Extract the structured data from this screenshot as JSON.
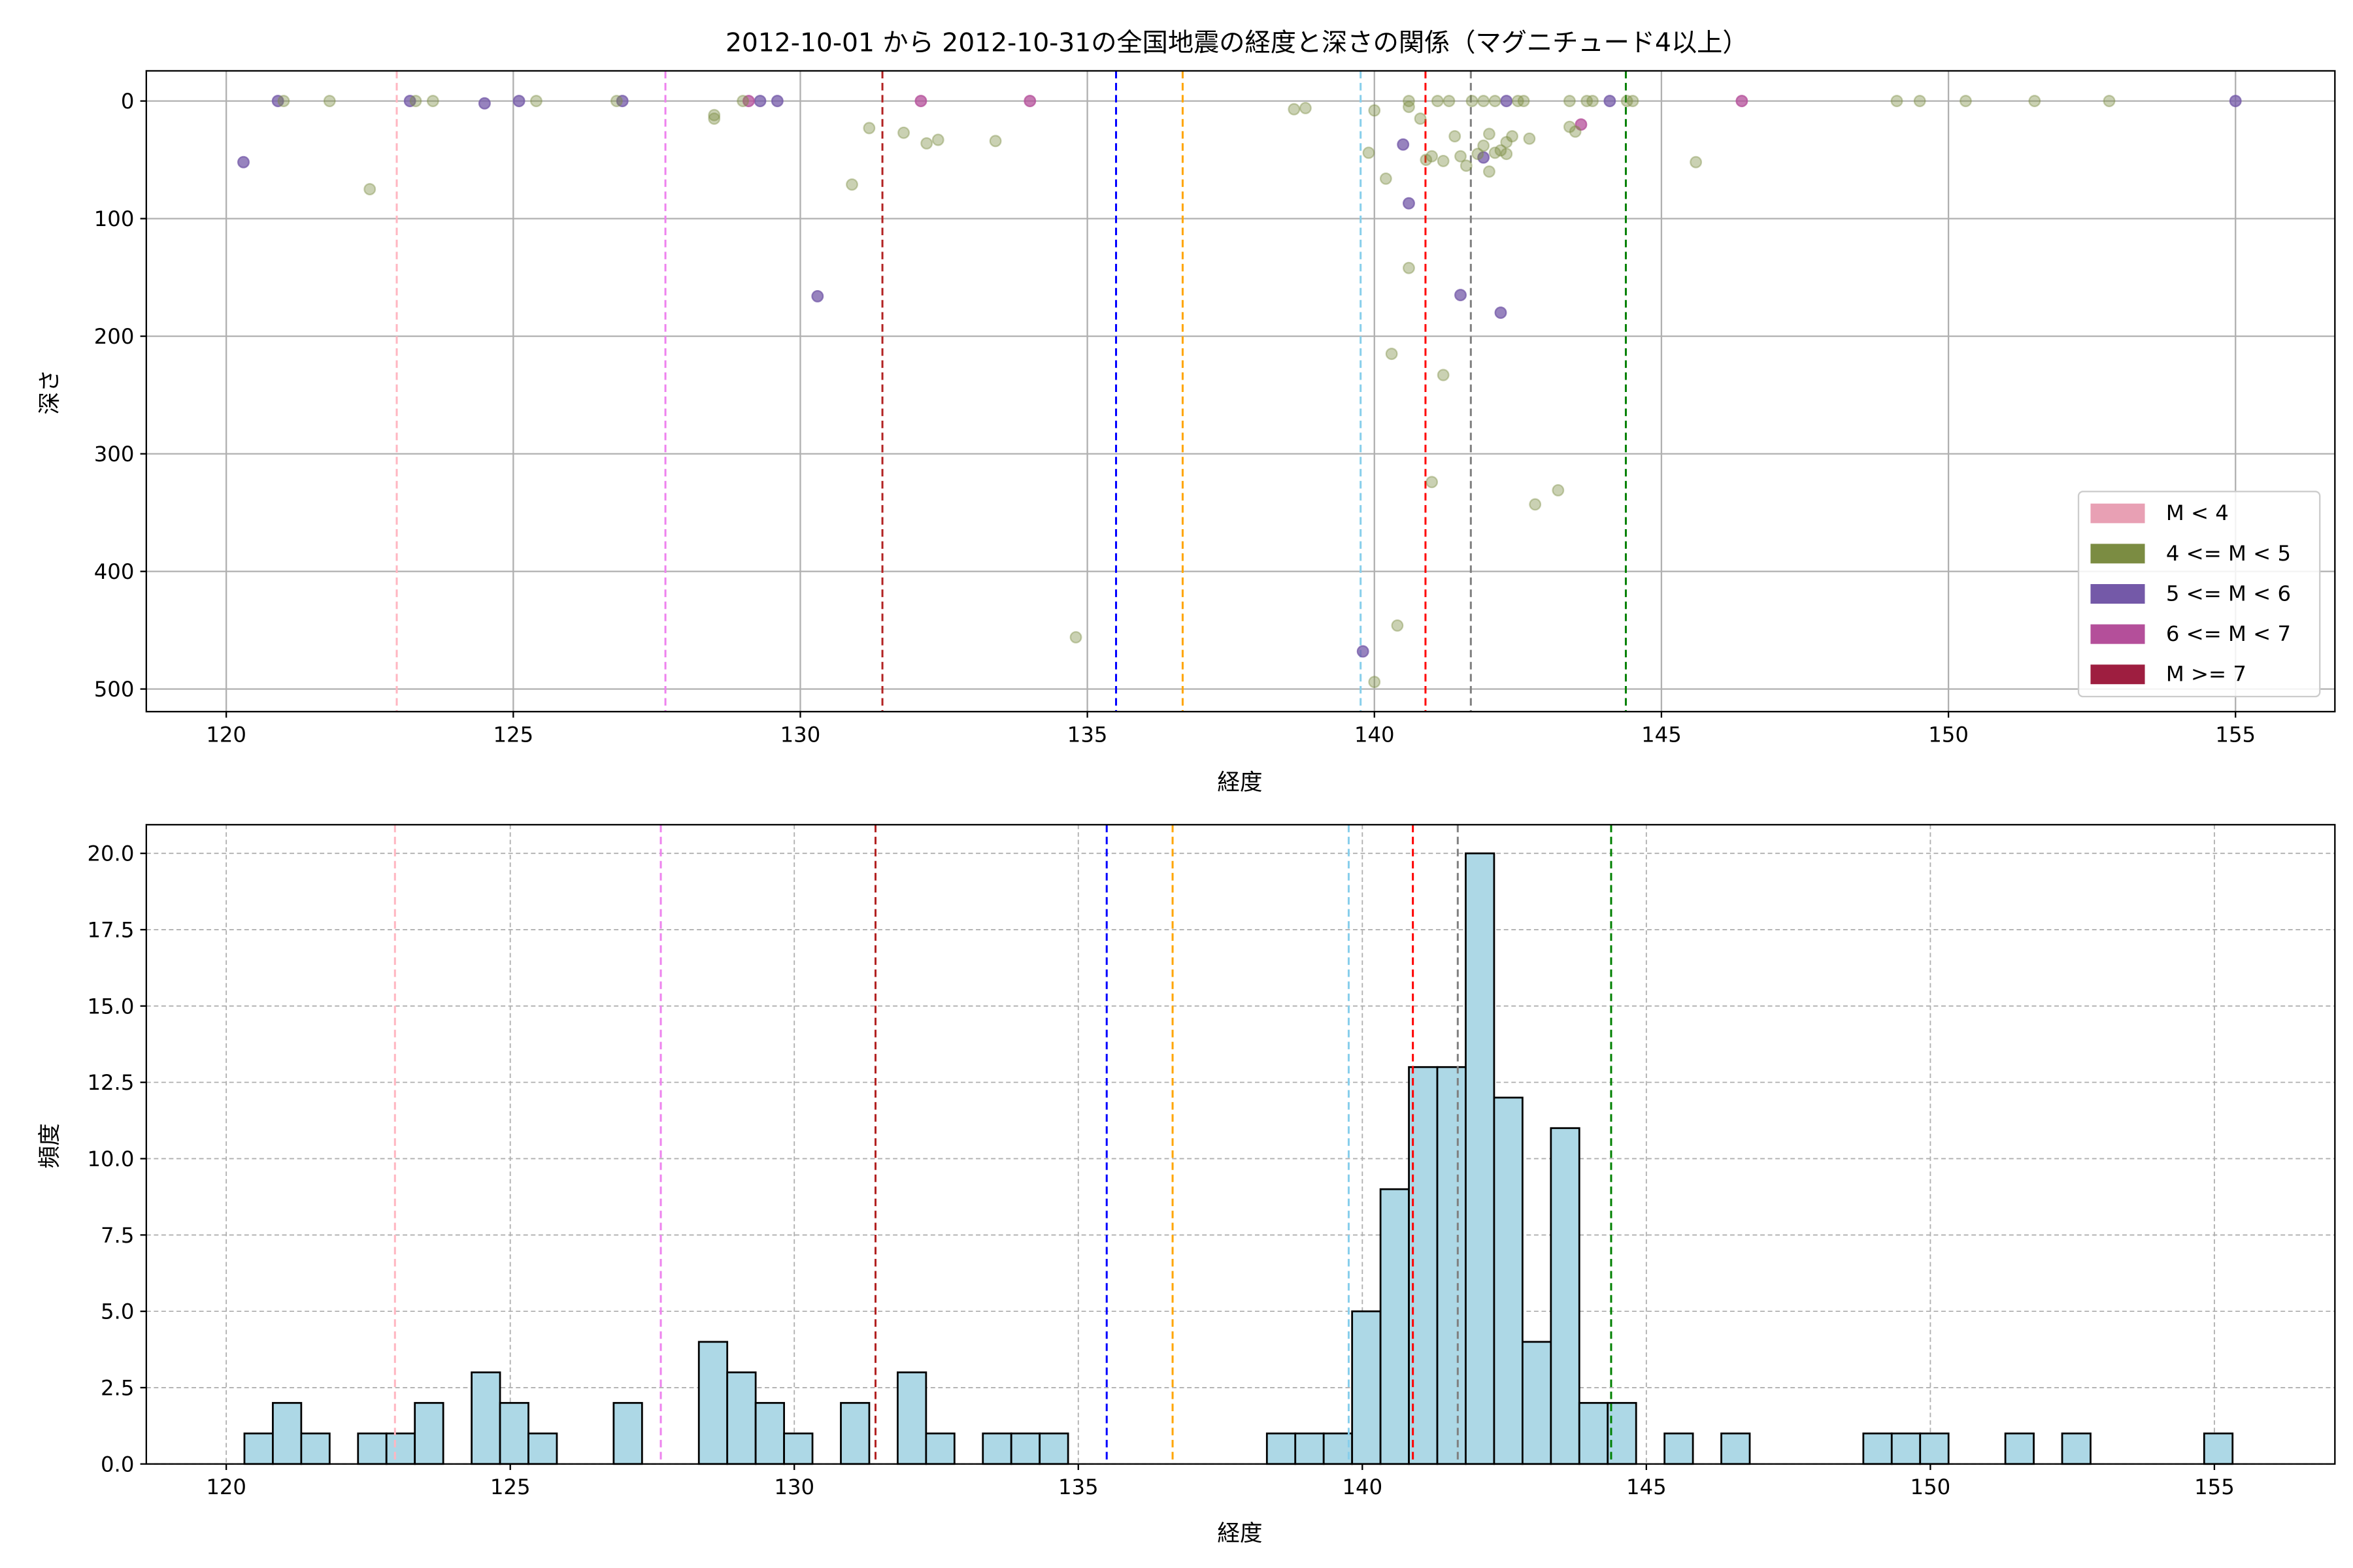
{
  "title": "2012-10-01 から 2012-10-31の全国地震の経度と深さの関係（マグニチュード4以上）",
  "chart_data": [
    {
      "type": "scatter",
      "xlabel": "経度",
      "ylabel": "深さ",
      "xlim": [
        118.6,
        156.7
      ],
      "ylim": [
        520,
        -25
      ],
      "y_inverted": true,
      "grid": true,
      "xticks": [
        "120",
        "125",
        "130",
        "135",
        "140",
        "145",
        "150",
        "155"
      ],
      "yticks": [
        "0",
        "100",
        "200",
        "300",
        "400",
        "500"
      ],
      "legend_position": "lower-right",
      "legend": [
        {
          "label": "M < 4",
          "color": "#e8a0b4"
        },
        {
          "label": "4 <= M < 5",
          "color": "#7b8c42"
        },
        {
          "label": "5 <= M < 6",
          "color": "#7459a8"
        },
        {
          "label": "6 <= M < 7",
          "color": "#b44f9a"
        },
        {
          "label": "M >= 7",
          "color": "#9e1e40"
        }
      ],
      "points": [
        [
          120.3,
          52,
          5
        ],
        [
          120.9,
          0,
          5
        ],
        [
          123.2,
          0,
          5
        ],
        [
          124.5,
          2,
          5
        ],
        [
          125.1,
          0,
          5
        ],
        [
          126.9,
          0,
          5
        ],
        [
          129.3,
          0,
          5
        ],
        [
          129.6,
          0,
          5
        ],
        [
          130.3,
          166,
          5
        ],
        [
          140.5,
          37,
          5
        ],
        [
          140.6,
          87,
          5
        ],
        [
          141.5,
          165,
          5
        ],
        [
          141.9,
          48,
          5
        ],
        [
          142.2,
          180,
          5
        ],
        [
          142.3,
          0,
          5
        ],
        [
          144.1,
          0,
          5
        ],
        [
          155.0,
          0,
          5
        ],
        [
          139.8,
          468,
          5
        ],
        [
          129.1,
          0,
          6
        ],
        [
          132.1,
          0,
          6
        ],
        [
          134.0,
          0,
          6
        ],
        [
          143.6,
          20,
          6
        ],
        [
          146.4,
          0,
          6
        ],
        [
          121.0,
          0,
          4
        ],
        [
          121.8,
          0,
          4
        ],
        [
          122.5,
          75,
          4
        ],
        [
          123.3,
          0,
          4
        ],
        [
          123.6,
          0,
          4
        ],
        [
          125.4,
          0,
          4
        ],
        [
          126.8,
          0,
          4
        ],
        [
          128.5,
          12,
          4
        ],
        [
          128.5,
          15,
          4
        ],
        [
          129.0,
          0,
          4
        ],
        [
          131.2,
          23,
          4
        ],
        [
          130.9,
          71,
          4
        ],
        [
          131.8,
          27,
          4
        ],
        [
          132.2,
          36,
          4
        ],
        [
          132.4,
          33,
          4
        ],
        [
          133.4,
          34,
          4
        ],
        [
          134.8,
          456,
          4
        ],
        [
          138.6,
          7,
          4
        ],
        [
          138.8,
          6,
          4
        ],
        [
          139.9,
          44,
          4
        ],
        [
          140.0,
          8,
          4
        ],
        [
          140.2,
          66,
          4
        ],
        [
          140.3,
          215,
          4
        ],
        [
          140.4,
          446,
          4
        ],
        [
          140.0,
          494,
          4
        ],
        [
          140.6,
          0,
          4
        ],
        [
          140.6,
          5,
          4
        ],
        [
          140.6,
          142,
          4
        ],
        [
          140.8,
          15,
          4
        ],
        [
          140.9,
          50,
          4
        ],
        [
          141.0,
          47,
          4
        ],
        [
          141.0,
          324,
          4
        ],
        [
          141.1,
          0,
          4
        ],
        [
          141.2,
          51,
          4
        ],
        [
          141.2,
          233,
          4
        ],
        [
          141.3,
          0,
          4
        ],
        [
          141.4,
          30,
          4
        ],
        [
          141.5,
          47,
          4
        ],
        [
          141.6,
          55,
          4
        ],
        [
          141.7,
          0,
          4
        ],
        [
          141.9,
          0,
          4
        ],
        [
          142.0,
          28,
          4
        ],
        [
          142.0,
          60,
          4
        ],
        [
          142.1,
          44,
          4
        ],
        [
          142.1,
          0,
          4
        ],
        [
          142.2,
          42,
          4
        ],
        [
          142.3,
          35,
          4
        ],
        [
          142.4,
          30,
          4
        ],
        [
          142.5,
          0,
          4
        ],
        [
          142.6,
          0,
          4
        ],
        [
          142.7,
          32,
          4
        ],
        [
          142.8,
          343,
          4
        ],
        [
          143.2,
          331,
          4
        ],
        [
          143.4,
          0,
          4
        ],
        [
          143.4,
          22,
          4
        ],
        [
          143.5,
          26,
          4
        ],
        [
          143.7,
          0,
          4
        ],
        [
          143.8,
          0,
          4
        ],
        [
          144.4,
          0,
          4
        ],
        [
          144.5,
          0,
          4
        ],
        [
          145.6,
          52,
          4
        ],
        [
          149.1,
          0,
          4
        ],
        [
          149.5,
          0,
          4
        ],
        [
          150.3,
          0,
          4
        ],
        [
          151.5,
          0,
          4
        ],
        [
          152.8,
          0,
          4
        ],
        [
          141.8,
          45,
          4
        ],
        [
          142.3,
          45,
          4
        ],
        [
          141.9,
          38,
          4
        ]
      ],
      "point_colors": {
        "4": "#7b8c42",
        "5": "#7459a8",
        "6": "#b44f9a"
      }
    },
    {
      "type": "bar",
      "subtype": "histogram",
      "xlabel": "経度",
      "ylabel": "頻度",
      "xlim": [
        118.6,
        156.7
      ],
      "ylim": [
        0,
        21
      ],
      "grid": true,
      "xticks": [
        "120",
        "125",
        "130",
        "135",
        "140",
        "145",
        "150",
        "155"
      ],
      "yticks": [
        "0.0",
        "2.5",
        "5.0",
        "7.5",
        "10.0",
        "12.5",
        "15.0",
        "17.5",
        "20.0"
      ],
      "bin_start": 120.32,
      "bin_width": 0.5,
      "bar_color": "#add8e6",
      "counts": [
        1,
        2,
        1,
        0,
        1,
        1,
        2,
        0,
        3,
        2,
        1,
        0,
        0,
        2,
        0,
        0,
        4,
        3,
        2,
        1,
        0,
        2,
        0,
        3,
        1,
        0,
        1,
        1,
        1,
        0,
        0,
        0,
        0,
        0,
        0,
        0,
        1,
        1,
        1,
        5,
        9,
        13,
        13,
        20,
        12,
        4,
        11,
        2,
        2,
        0,
        1,
        0,
        1,
        0,
        0,
        0,
        0,
        1,
        1,
        1,
        0,
        0,
        1,
        0,
        1,
        0,
        0,
        0,
        0,
        1
      ]
    }
  ],
  "reference_lines": [
    {
      "lon": 122.97,
      "color": "#ffb6c1"
    },
    {
      "lon": 127.65,
      "color": "#ee82ee"
    },
    {
      "lon": 131.43,
      "color": "#b22222"
    },
    {
      "lon": 135.5,
      "color": "#0000ff"
    },
    {
      "lon": 136.66,
      "color": "#ffa500"
    },
    {
      "lon": 139.76,
      "color": "#87ceeb"
    },
    {
      "lon": 140.89,
      "color": "#ff0000"
    },
    {
      "lon": 141.68,
      "color": "#808080"
    },
    {
      "lon": 144.38,
      "color": "#008000"
    }
  ]
}
